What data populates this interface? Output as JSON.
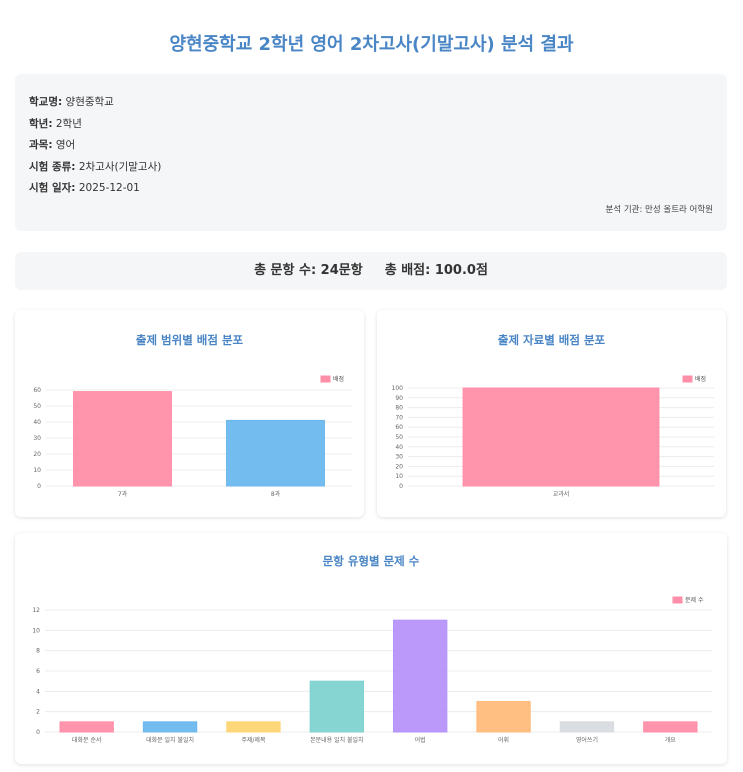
{
  "page": {
    "title": "양현중학교 2학년 영어 2차고사(기말고사) 분석 결과"
  },
  "info": {
    "school_label": "학교명:",
    "school_value": "양현중학교",
    "grade_label": "학년:",
    "grade_value": "2학년",
    "subject_label": "과목:",
    "subject_value": "영어",
    "exam_label": "시험 종류:",
    "exam_value": "2차고사(기말고사)",
    "date_label": "시험 일자:",
    "date_value": "2025-12-01",
    "org": "분석 기관: 만성 올트라 어학원"
  },
  "totals": {
    "count_text": "총 문항 수: 24문항",
    "score_text": "총 배점: 100.0점"
  },
  "colors": {
    "title": "#4a86c5",
    "palette": [
      "#ff8fa8",
      "#6cb8ee",
      "#ffd574",
      "#80d3d1",
      "#b694fb",
      "#ffbb7b",
      "#d8dbdf",
      "#ff8fa8"
    ]
  },
  "chart_data": [
    {
      "type": "bar",
      "title": "출제 범위별 배점 분포",
      "categories": [
        "7과",
        "8과"
      ],
      "series": [
        {
          "name": "배점",
          "values": [
            59,
            41
          ]
        }
      ],
      "ylim": [
        0,
        60
      ],
      "yticks": [
        0,
        10,
        20,
        30,
        40,
        50,
        60
      ],
      "legend": "top-right",
      "grid": true
    },
    {
      "type": "bar",
      "title": "출제 자료별 배점 분포",
      "categories": [
        "교과서"
      ],
      "series": [
        {
          "name": "배점",
          "values": [
            100
          ]
        }
      ],
      "ylim": [
        0,
        100
      ],
      "yticks": [
        0,
        10,
        20,
        30,
        40,
        50,
        60,
        70,
        80,
        90,
        100
      ],
      "legend": "top-right",
      "grid": true
    },
    {
      "type": "bar",
      "title": "문항 유형별 문제 수",
      "categories": [
        "대화문 순서",
        "대화문 일치 불일치",
        "주제/제목",
        "본문내용 일치 불일치",
        "어법",
        "어휘",
        "영어쓰기",
        "개요"
      ],
      "series": [
        {
          "name": "문제 수",
          "values": [
            1,
            1,
            1,
            5,
            11,
            3,
            1,
            1
          ]
        }
      ],
      "ylim": [
        0,
        12
      ],
      "yticks": [
        0,
        2,
        4,
        6,
        8,
        10,
        12
      ],
      "legend": "top-right",
      "grid": true
    }
  ]
}
